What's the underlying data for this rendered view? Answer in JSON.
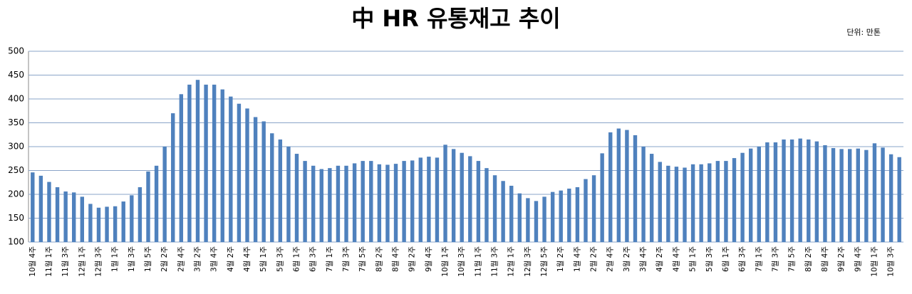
{
  "chart_data": {
    "type": "bar",
    "title": "中 HR 유통재고 추이",
    "unit_label": "단위: 만톤",
    "categories": [
      "10월 4주",
      null,
      "11월 1주",
      null,
      "11월 3주",
      null,
      "12월 1주",
      null,
      "12월 3주",
      null,
      "1월 1주",
      null,
      "1월 3주",
      null,
      "1월 5주",
      null,
      "2월 2주",
      null,
      "2월 4주",
      null,
      "3월 2주",
      null,
      "3월 4주",
      null,
      "4월 2주",
      null,
      "4월 4주",
      null,
      "5월 1주",
      null,
      "5월 3주",
      null,
      "6월 1주",
      null,
      "6월 3주",
      null,
      "7월 1주",
      null,
      "7월 3주",
      null,
      "7월 5주",
      null,
      "8월 2주",
      null,
      "8월 4주",
      null,
      "9월 2주",
      null,
      "9월 4주",
      null,
      "10월 1주",
      null,
      "10월 3주",
      null,
      "11월 1주",
      null,
      "11월 3주",
      null,
      "12월 1주",
      null,
      "12월 3주",
      null,
      "12월 5주",
      null,
      "1월 2주",
      null,
      "1월 4주",
      null,
      "2월 2주",
      null,
      "2월 4주",
      null,
      "3월 2주",
      null,
      "3월 4주",
      null,
      "4월 2주",
      null,
      "4월 4주",
      null,
      "5월 1주",
      null,
      "5월 3주",
      null,
      "6월 1주",
      null,
      "6월 3주",
      null,
      "7월 1주",
      null,
      "7월 3주",
      null,
      "7월 5주",
      null,
      "8월 2주",
      null,
      "8월 4주",
      null,
      "9월 2주",
      null,
      "9월 4주",
      null,
      "10월 1주",
      null,
      "10월 3주",
      null
    ],
    "values": [
      246,
      239,
      226,
      215,
      206,
      204,
      195,
      180,
      172,
      174,
      175,
      185,
      198,
      215,
      248,
      260,
      300,
      370,
      410,
      430,
      440,
      430,
      430,
      420,
      405,
      390,
      380,
      362,
      353,
      328,
      315,
      300,
      285,
      270,
      260,
      253,
      255,
      260,
      260,
      265,
      270,
      270,
      263,
      262,
      264,
      270,
      271,
      277,
      279,
      277,
      304,
      295,
      287,
      280,
      270,
      255,
      240,
      228,
      218,
      202,
      192,
      186,
      195,
      205,
      208,
      212,
      215,
      232,
      240,
      286,
      330,
      338,
      335,
      324,
      300,
      285,
      268,
      260,
      258,
      256,
      263,
      263,
      265,
      270,
      270,
      276,
      287,
      296,
      300,
      309,
      309,
      315,
      315,
      317,
      315,
      311,
      303,
      297,
      295,
      295,
      296,
      293,
      307,
      298,
      284,
      278
    ],
    "color": "#4f81bd",
    "ylim": [
      100,
      500
    ],
    "yticks": [
      100,
      150,
      200,
      250,
      300,
      350,
      400,
      450,
      500
    ],
    "grid": true
  }
}
